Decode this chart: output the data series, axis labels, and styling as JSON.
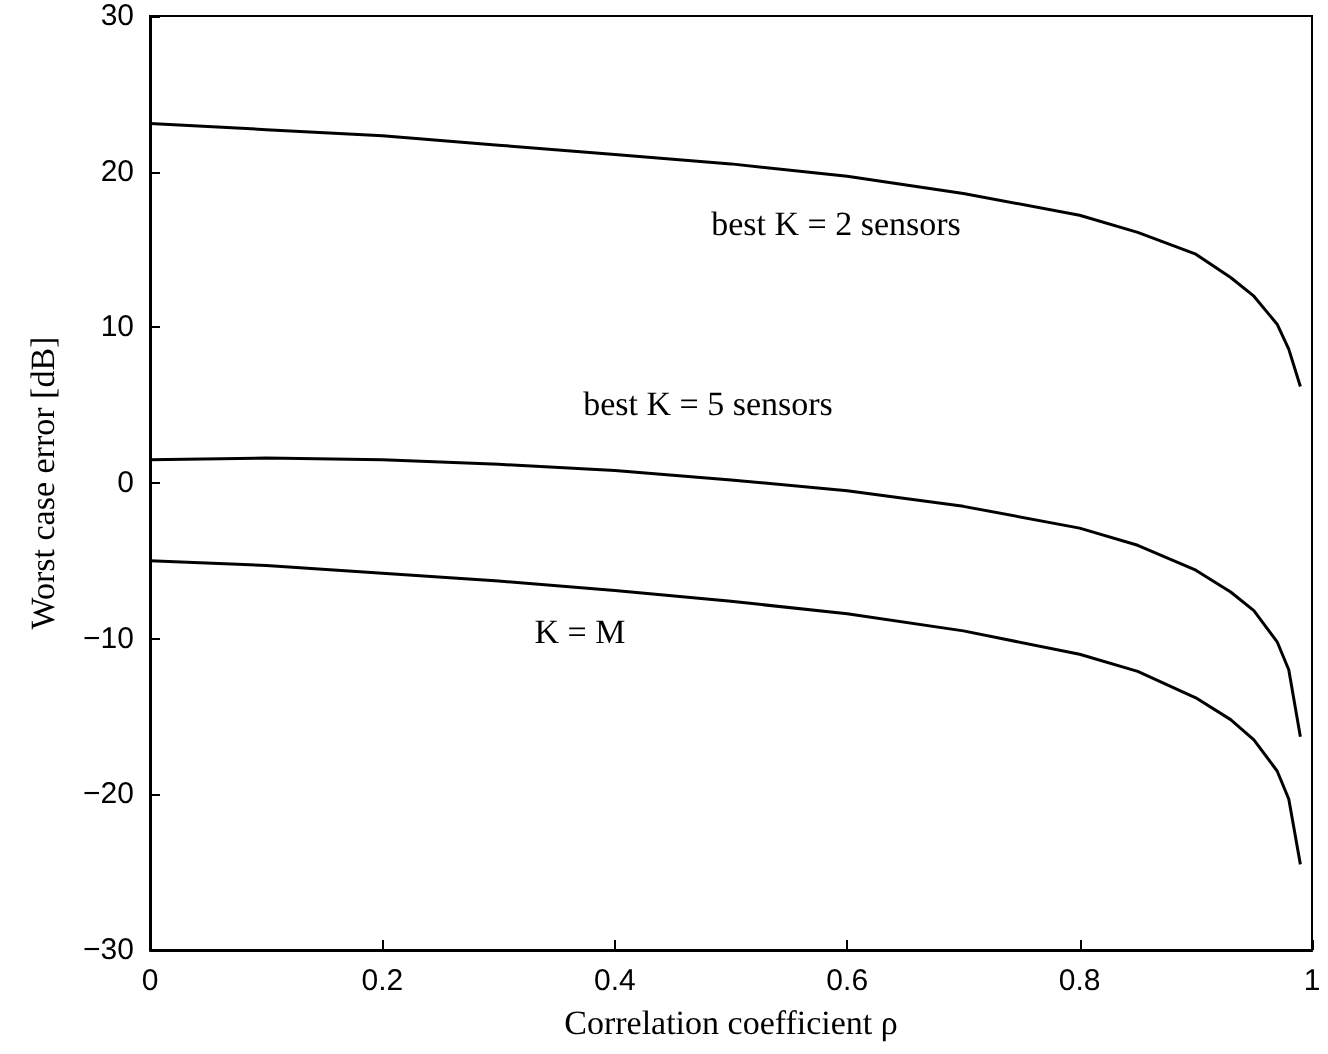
{
  "chart_data": {
    "type": "line",
    "xlabel": "Correlation coefficient ρ",
    "ylabel": "Worst case error [dB]",
    "xlim": [
      0,
      1
    ],
    "xticks": [
      0,
      0.2,
      0.4,
      0.6,
      0.8,
      1
    ],
    "ylim": [
      -30,
      30
    ],
    "yticks": [
      {
        "value": -30,
        "label": "−30"
      },
      {
        "value": -20,
        "label": "−20"
      },
      {
        "value": -10,
        "label": "−10"
      },
      0,
      10,
      20,
      30
    ],
    "x": [
      0,
      0.1,
      0.2,
      0.3,
      0.4,
      0.5,
      0.6,
      0.7,
      0.8,
      0.85,
      0.9,
      0.93,
      0.95,
      0.97,
      0.98,
      0.99
    ],
    "series": [
      {
        "color": "#000000",
        "values": [
          23.1,
          22.7,
          22.3,
          21.7,
          21.1,
          20.5,
          19.7,
          18.6,
          17.2,
          16.1,
          14.7,
          13.2,
          12.0,
          10.2,
          8.6,
          6.2
        ]
      },
      {
        "color": "#000000",
        "values": [
          1.5,
          1.6,
          1.5,
          1.2,
          0.8,
          0.2,
          -0.5,
          -1.5,
          -2.9,
          -4.0,
          -5.6,
          -7.0,
          -8.2,
          -10.2,
          -12.0,
          -16.3
        ]
      },
      {
        "color": "#000000",
        "values": [
          -5.0,
          -5.3,
          -5.8,
          -6.3,
          -6.9,
          -7.6,
          -8.4,
          -9.5,
          -11.0,
          -12.1,
          -13.8,
          -15.2,
          -16.5,
          -18.5,
          -20.3,
          -24.5
        ]
      }
    ],
    "annotations": [
      "best K = 2 sensors",
      "best K = 5 sensors",
      "K = M"
    ],
    "grid": false,
    "marker": "none",
    "line_style": "solid"
  }
}
